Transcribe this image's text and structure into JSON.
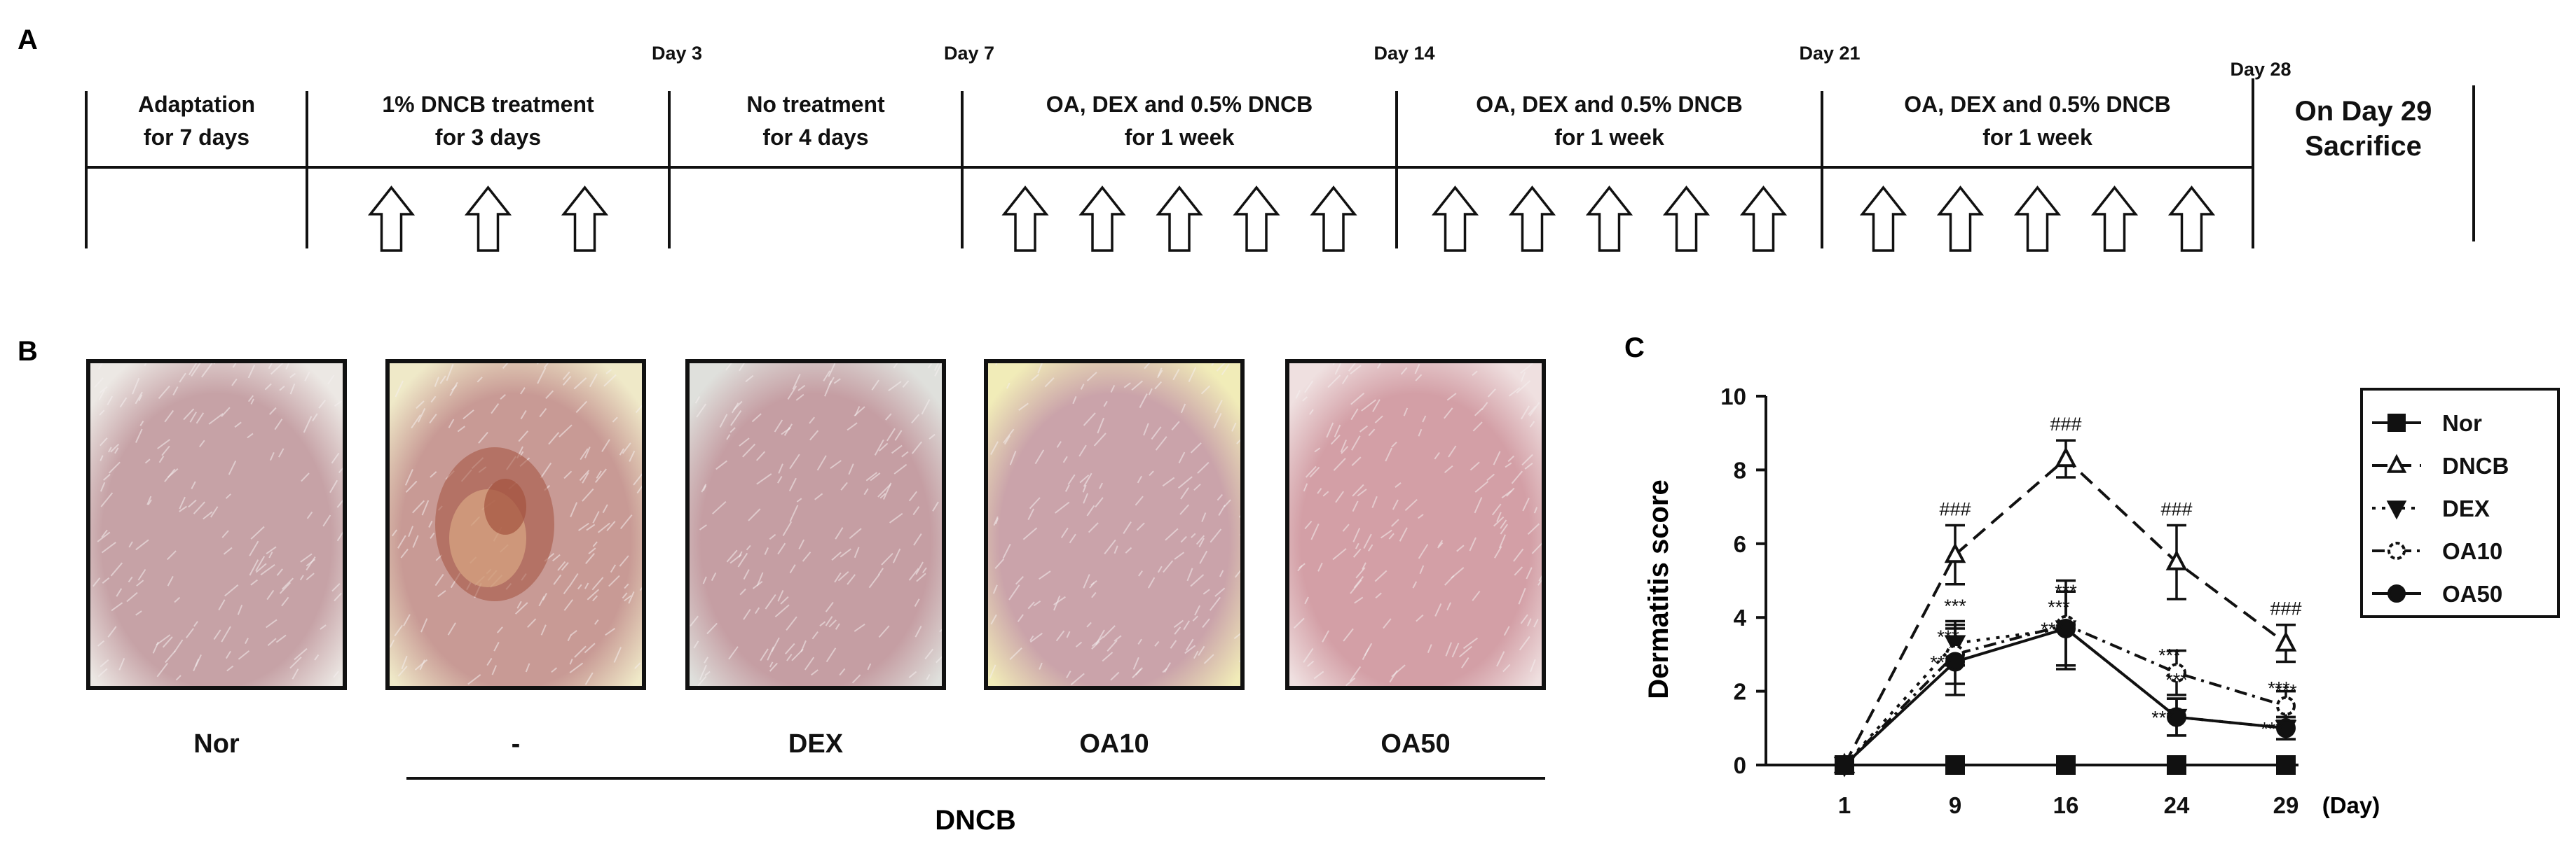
{
  "panels": {
    "a": "A",
    "b": "B",
    "c": "C"
  },
  "timeline": {
    "days": [
      "Day 3",
      "Day 7",
      "Day 14",
      "Day 21",
      "Day 28"
    ],
    "phases": [
      {
        "line1": "Adaptation",
        "line2": "for 7 days",
        "arrows": 0
      },
      {
        "line1": "1% DNCB treatment",
        "line2": "for 3 days",
        "arrows": 3
      },
      {
        "line1": "No treatment",
        "line2": "for 4 days",
        "arrows": 0
      },
      {
        "line1": "OA, DEX and 0.5% DNCB",
        "line2": "for 1 week",
        "arrows": 5
      },
      {
        "line1": "OA, DEX and 0.5% DNCB",
        "line2": "for 1 week",
        "arrows": 5
      },
      {
        "line1": "OA, DEX and 0.5% DNCB",
        "line2": "for 1 week",
        "arrows": 5
      },
      {
        "line1": "On Day 29",
        "line2": "Sacrifice",
        "arrows": 0
      }
    ]
  },
  "photos": {
    "labels": [
      "Nor",
      "-",
      "DEX",
      "OA10",
      "OA50"
    ],
    "group_label": "DNCB",
    "colors": {
      "skin": [
        "#c6a2a6",
        "#c89a95",
        "#c59ea3",
        "#caa3aa",
        "#d39fa6"
      ],
      "fur": [
        "#ece8e4",
        "#efe9c8",
        "#dfe0dc",
        "#f1ecb8",
        "#efe0e0"
      ],
      "lesion": "#a4523e"
    }
  },
  "chart_data": {
    "type": "line",
    "ylabel": "Dermatitis score",
    "xlabel": "(Day)",
    "x": [
      1,
      9,
      16,
      24,
      29
    ],
    "ylim": [
      0,
      10
    ],
    "yticks": [
      0,
      2,
      4,
      6,
      8,
      10
    ],
    "legend_position": "right",
    "series": [
      {
        "name": "Nor",
        "values": [
          0,
          0,
          0,
          0,
          0
        ],
        "errors": [
          0,
          0,
          0,
          0,
          0
        ],
        "marker": "square",
        "dash": "solid",
        "annotations": [
          "",
          "",
          "",
          "",
          ""
        ]
      },
      {
        "name": "DNCB",
        "values": [
          0,
          5.7,
          8.3,
          5.5,
          3.3
        ],
        "errors": [
          0,
          0.8,
          0.5,
          1.0,
          0.5
        ],
        "marker": "triangle-open",
        "dash": "dashed",
        "annotations": [
          "",
          "###",
          "###",
          "###",
          "###"
        ]
      },
      {
        "name": "DEX",
        "values": [
          0,
          3.3,
          3.7,
          1.3,
          1.0
        ],
        "errors": [
          0,
          0.6,
          1.0,
          0.5,
          0.3
        ],
        "marker": "triangle-down",
        "dash": "dotted",
        "annotations": [
          "",
          "***",
          "***",
          "***",
          "***"
        ]
      },
      {
        "name": "OA10",
        "values": [
          0,
          3.0,
          3.8,
          2.5,
          1.6
        ],
        "errors": [
          0,
          0.8,
          1.2,
          0.6,
          0.4
        ],
        "marker": "circle-open",
        "dash": "dash-dot",
        "annotations": [
          "",
          "***",
          "***",
          "***",
          "***"
        ]
      },
      {
        "name": "OA50",
        "values": [
          0,
          2.8,
          3.7,
          1.3,
          1.0
        ],
        "errors": [
          0,
          0.9,
          1.0,
          0.5,
          0.3
        ],
        "marker": "circle",
        "dash": "solid",
        "annotations": [
          "",
          "***",
          "***",
          "***",
          "***"
        ]
      }
    ]
  }
}
